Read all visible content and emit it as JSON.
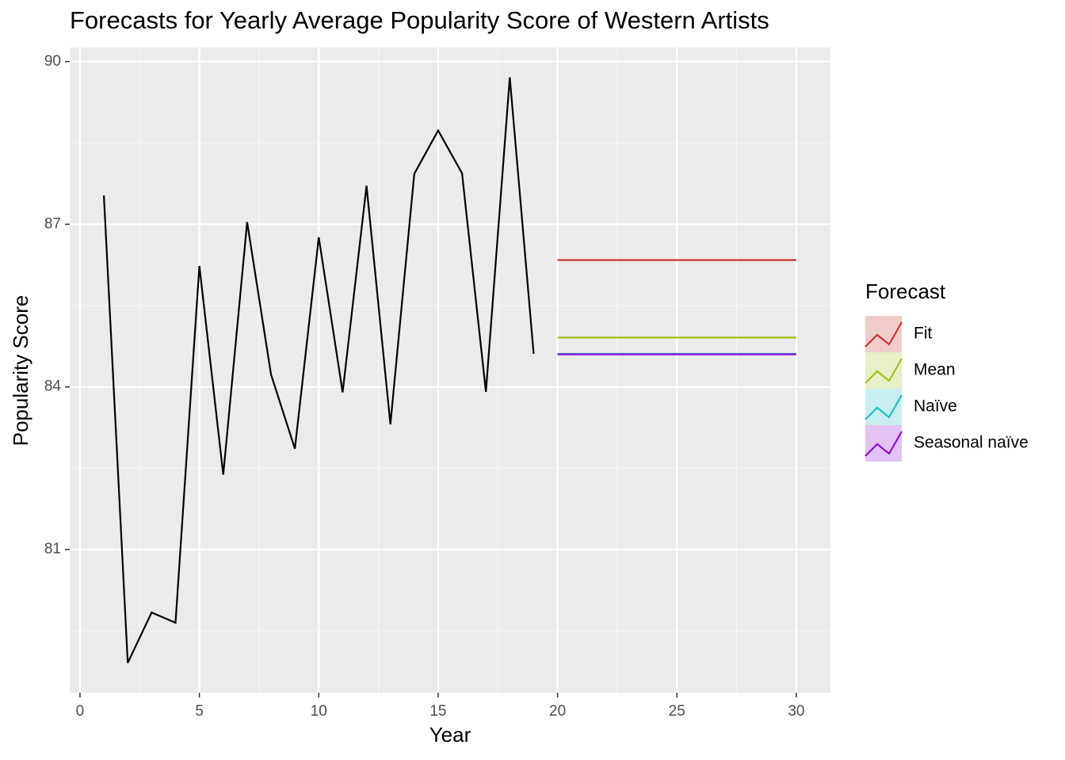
{
  "chart_data": {
    "type": "line",
    "title": "Forecasts for Yearly Average Popularity Score of Western Artists",
    "x_label": "Year",
    "y_label": "Popularity Score",
    "history": {
      "color": "#000000",
      "x": [
        1,
        2,
        3,
        4,
        5,
        6,
        7,
        8,
        9,
        10,
        11,
        12,
        13,
        14,
        15,
        16,
        17,
        18,
        19
      ],
      "values": [
        87.53,
        78.91,
        79.84,
        79.65,
        86.23,
        82.38,
        87.04,
        84.23,
        82.86,
        86.76,
        83.9,
        87.71,
        83.31,
        87.93,
        88.73,
        87.94,
        83.91,
        89.71,
        84.61
      ]
    },
    "forecast_x": [
      20,
      30
    ],
    "legend_title": "Forecast",
    "series": [
      {
        "name": "Fit",
        "color": "#c5382e",
        "values": [
          86.34,
          86.34
        ]
      },
      {
        "name": "Mean",
        "color": "#9fc31a",
        "values": [
          84.91,
          84.91
        ]
      },
      {
        "name": "Naïve",
        "color": "#1fbfc3",
        "values": [
          84.61,
          84.61
        ]
      },
      {
        "name": "Seasonal naïve",
        "color": "#8a0fd0",
        "values": [
          84.6,
          84.6
        ]
      }
    ],
    "xlim": [
      -0.43,
      31.43
    ],
    "xticks": [
      0,
      5,
      10,
      15,
      20,
      25,
      30
    ],
    "ylim": [
      78.36,
      90.26
    ],
    "yticks": [
      81,
      84,
      87,
      90
    ],
    "grid": true,
    "legend_position": "right"
  }
}
